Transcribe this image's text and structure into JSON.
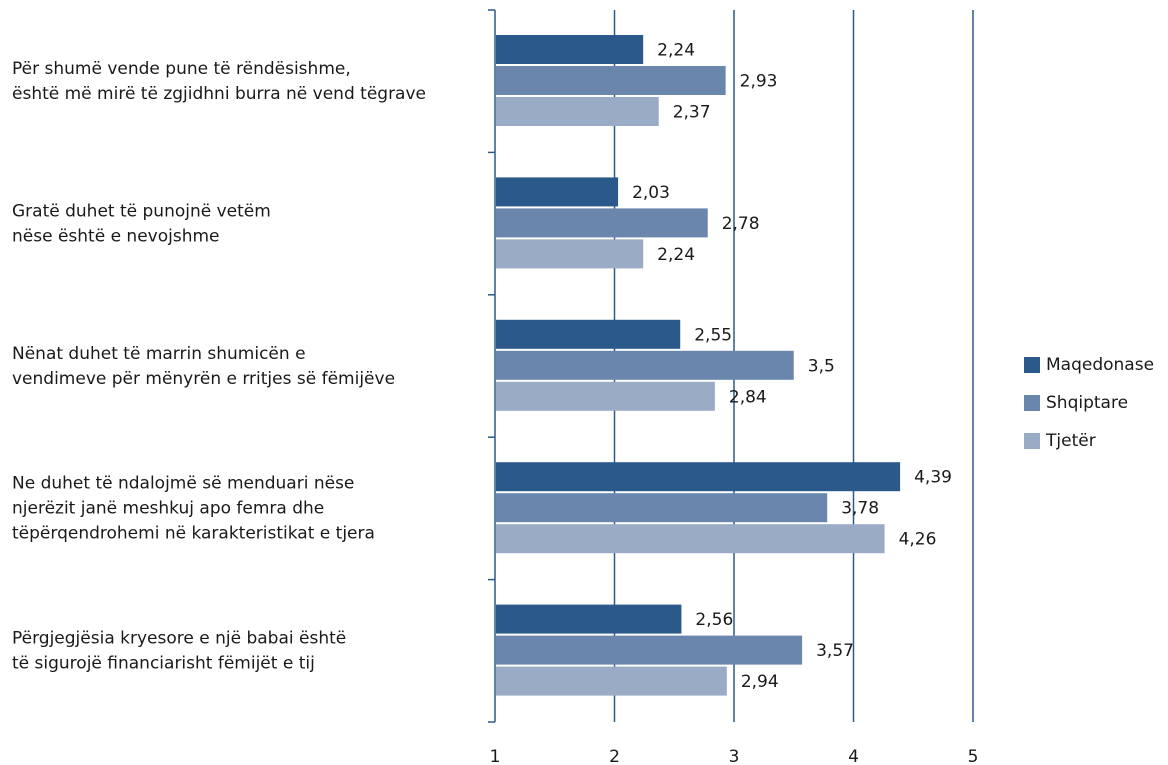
{
  "chart_data": {
    "type": "bar",
    "orientation": "horizontal",
    "categories": [
      [
        "Për shumë vende pune të rëndësishme,",
        "është më mirë të zgjidhni burra në vend tëgrave"
      ],
      [
        "Gratë duhet të punojnë vetëm",
        "nëse është e nevojshme"
      ],
      [
        "Nënat duhet të marrin shumicën e",
        "vendimeve për mënyrën e rritjes së fëmijëve"
      ],
      [
        "Ne duhet të ndalojmë së menduari nëse",
        "njerëzit janë meshkuj apo femra dhe",
        "tëpërqendrohemi në karakteristikat e tjera"
      ],
      [
        "Përgjegjësia kryesore e një babai është",
        "të sigurojë financiarisht fëmijët e tij"
      ]
    ],
    "series": [
      {
        "name": "Maqedonase",
        "color": "#2b5a8a",
        "values": [
          2.24,
          2.03,
          2.55,
          4.39,
          2.56
        ],
        "labels": [
          "2,24",
          "2,03",
          "2,55",
          "4,39",
          "2,56"
        ]
      },
      {
        "name": "Shqiptare",
        "color": "#6b86ad",
        "values": [
          2.93,
          2.78,
          3.5,
          3.78,
          3.57
        ],
        "labels": [
          "2,93",
          "2,78",
          "3,5",
          "3,78",
          "3,57"
        ]
      },
      {
        "name": "Tjetër",
        "color": "#9aabc6",
        "values": [
          2.37,
          2.24,
          2.84,
          4.26,
          2.94
        ],
        "labels": [
          "2,37",
          "2,24",
          "2,84",
          "4,26",
          "2,94"
        ]
      }
    ],
    "xlim": [
      1,
      5
    ],
    "xticks": [
      "1",
      "2",
      "3",
      "4",
      "5"
    ],
    "grid": true,
    "gridColor": "#2b5a8a",
    "legend_position": "right"
  }
}
